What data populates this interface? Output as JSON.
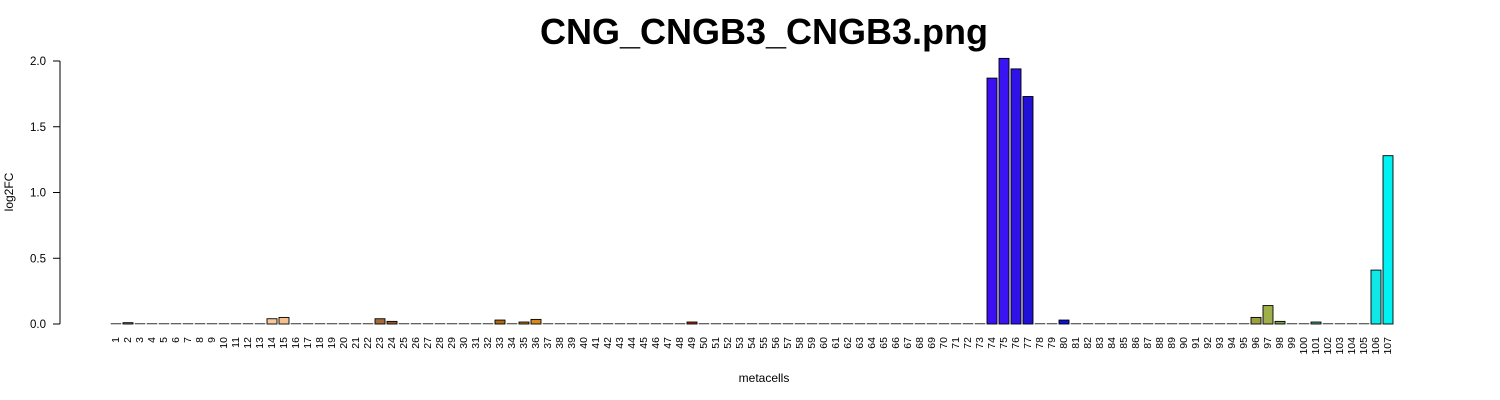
{
  "chart_data": {
    "type": "bar",
    "title": "CNG_CNGB3_CNGB3.png",
    "xlabel": "metacells",
    "ylabel": "log2FC",
    "ylim": [
      0,
      2.0
    ],
    "yticks": [
      "0.0",
      "0.5",
      "1.0",
      "1.5",
      "2.0"
    ],
    "ytick_values": [
      0,
      0.5,
      1.0,
      1.5,
      2.0
    ],
    "grid": false,
    "categories": [
      "1",
      "2",
      "3",
      "4",
      "5",
      "6",
      "7",
      "8",
      "9",
      "10",
      "11",
      "12",
      "13",
      "14",
      "15",
      "16",
      "17",
      "18",
      "19",
      "20",
      "21",
      "22",
      "23",
      "24",
      "25",
      "26",
      "27",
      "28",
      "29",
      "30",
      "31",
      "32",
      "33",
      "34",
      "35",
      "36",
      "37",
      "38",
      "39",
      "40",
      "41",
      "42",
      "43",
      "44",
      "45",
      "46",
      "47",
      "48",
      "49",
      "50",
      "51",
      "52",
      "53",
      "54",
      "55",
      "56",
      "57",
      "58",
      "59",
      "60",
      "61",
      "62",
      "63",
      "64",
      "65",
      "66",
      "67",
      "68",
      "69",
      "70",
      "71",
      "72",
      "73",
      "74",
      "75",
      "76",
      "77",
      "78",
      "79",
      "80",
      "81",
      "82",
      "83",
      "84",
      "85",
      "86",
      "87",
      "88",
      "89",
      "90",
      "91",
      "92",
      "93",
      "94",
      "95",
      "96",
      "97",
      "98",
      "99",
      "100",
      "101",
      "102",
      "103",
      "104",
      "105",
      "106",
      "107"
    ],
    "values": [
      0,
      0.01,
      0,
      0,
      0,
      0,
      0,
      0,
      0,
      0,
      0,
      0,
      0,
      0.04,
      0.05,
      0,
      0,
      0,
      0,
      0,
      0,
      0,
      0.04,
      0.02,
      0,
      0,
      0,
      0,
      0,
      0,
      0,
      0,
      0.03,
      0,
      0.015,
      0.035,
      0,
      0,
      0,
      0,
      0,
      0,
      0,
      0,
      0,
      0,
      0,
      0,
      0.015,
      0,
      0,
      0,
      0,
      0,
      0,
      0,
      0,
      0,
      0,
      0,
      0,
      0,
      0,
      0,
      0,
      0,
      0,
      0,
      0,
      0,
      0,
      0,
      0,
      1.87,
      2.02,
      1.94,
      1.73,
      0,
      0,
      0.03,
      0,
      0,
      0,
      0,
      0,
      0,
      0,
      0,
      0,
      0,
      0,
      0,
      0,
      0,
      0,
      0.05,
      0.14,
      0.02,
      0,
      0,
      0.015,
      0,
      0,
      0,
      0,
      0.41,
      1.28
    ],
    "colors": [
      "#8c8c8c",
      "#8a8a6e",
      "#8c8c8c",
      "#8c8c8c",
      "#8c8c8c",
      "#8c8c8c",
      "#8c8c8c",
      "#8c8c8c",
      "#8c8c8c",
      "#8c8c8c",
      "#8c8c8c",
      "#8c8c8c",
      "#8c8c8c",
      "#f7c99a",
      "#f5c08e",
      "#8c8c8c",
      "#8c8c8c",
      "#8c8c8c",
      "#8c8c8c",
      "#8c8c8c",
      "#8c8c8c",
      "#8c8c8c",
      "#a66a3a",
      "#9e5a2a",
      "#8c8c8c",
      "#8c8c8c",
      "#8c8c8c",
      "#8c8c8c",
      "#8c8c8c",
      "#8c8c8c",
      "#8c8c8c",
      "#8c8c8c",
      "#b06a14",
      "#8c8c8c",
      "#c07a1a",
      "#d68a20",
      "#8c8c8c",
      "#8c8c8c",
      "#8c8c8c",
      "#8c8c8c",
      "#8c8c8c",
      "#8c8c8c",
      "#8c8c8c",
      "#8c8c8c",
      "#8c8c8c",
      "#8c8c8c",
      "#8c8c8c",
      "#8c8c8c",
      "#b03010",
      "#8c8c8c",
      "#8c8c8c",
      "#8c8c8c",
      "#8c8c8c",
      "#8c8c8c",
      "#8c8c8c",
      "#8c8c8c",
      "#8c8c8c",
      "#8c8c8c",
      "#8c8c8c",
      "#8c8c8c",
      "#8c8c8c",
      "#8c8c8c",
      "#8c8c8c",
      "#8c8c8c",
      "#8c8c8c",
      "#8c8c8c",
      "#8c8c8c",
      "#8c8c8c",
      "#8c8c8c",
      "#8c8c8c",
      "#8c8c8c",
      "#8c8c8c",
      "#8c8c8c",
      "#3c10f0",
      "#3a14f2",
      "#2f12e8",
      "#2010d8",
      "#8c8c8c",
      "#8c8c8c",
      "#1010d0",
      "#8c8c8c",
      "#8c8c8c",
      "#8c8c8c",
      "#8c8c8c",
      "#8c8c8c",
      "#8c8c8c",
      "#8c8c8c",
      "#8c8c8c",
      "#8c8c8c",
      "#8c8c8c",
      "#8c8c8c",
      "#8c8c8c",
      "#8c8c8c",
      "#8c8c8c",
      "#8c8c8c",
      "#9aa040",
      "#a0b048",
      "#7ca040",
      "#8c8c8c",
      "#8c8c8c",
      "#4aa880",
      "#8c8c8c",
      "#8c8c8c",
      "#8c8c8c",
      "#8c8c8c",
      "#10e8e8",
      "#00f2f2"
    ]
  }
}
